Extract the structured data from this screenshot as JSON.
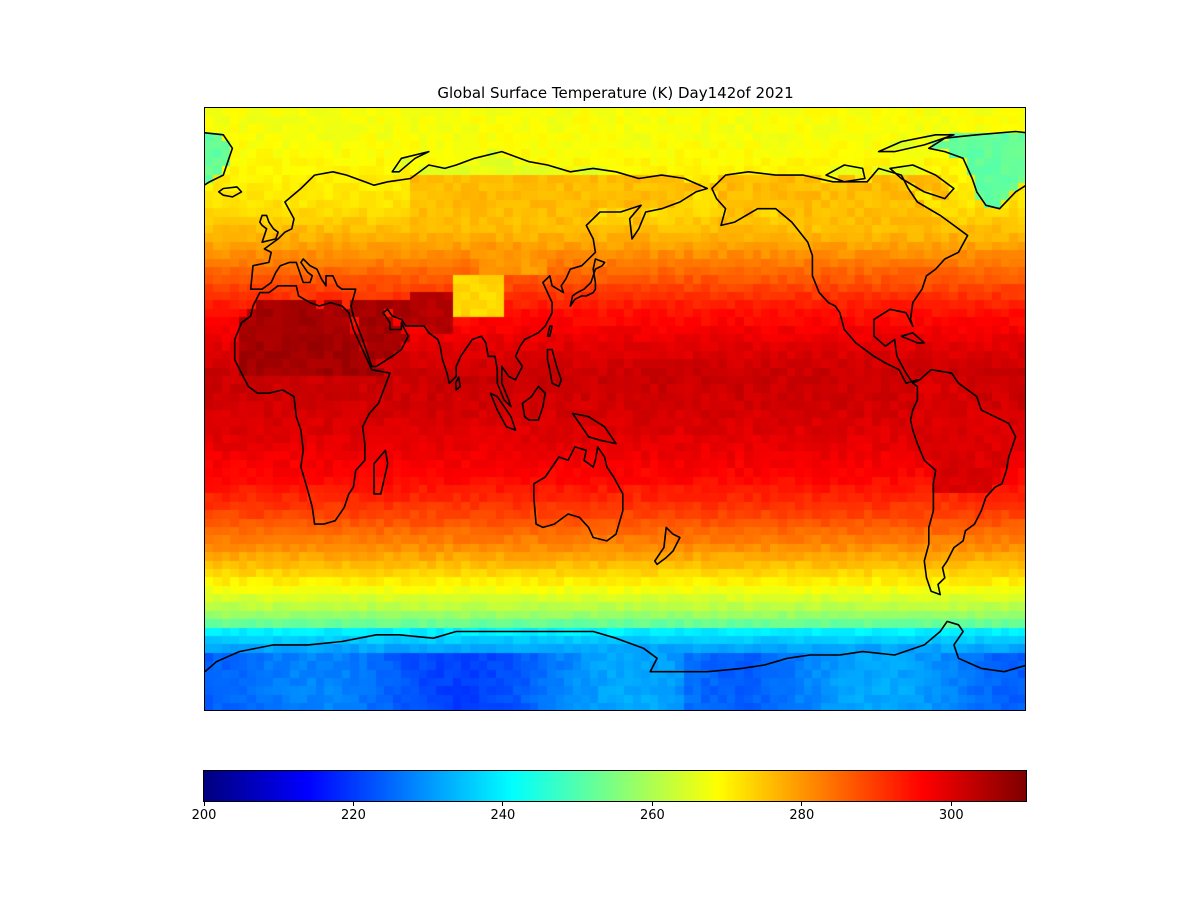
{
  "chart_data": {
    "type": "heatmap",
    "title": "Global Surface Temperature (K) Day142of 2021",
    "colormap": "jet",
    "colorbar": {
      "vmin": 200,
      "vmax": 310,
      "ticks": [
        200,
        220,
        240,
        260,
        280,
        300
      ],
      "tick_labels": [
        "200",
        "220",
        "240",
        "260",
        "280",
        "300"
      ],
      "orientation": "horizontal",
      "placement": "bottom"
    },
    "map": {
      "projection": "equirectangular",
      "central_longitude": 150,
      "lon_range": [
        -30,
        330
      ],
      "lat_range": [
        -90,
        90
      ],
      "coastlines": true,
      "country_borders": true,
      "state_borders": true
    },
    "temperature_profile": {
      "latitudes": [
        -90,
        -80,
        -75,
        -70,
        -65,
        -60,
        -50,
        -40,
        -30,
        -20,
        -10,
        0,
        10,
        20,
        30,
        40,
        50,
        60,
        70,
        80,
        90
      ],
      "ocean_values": [
        226,
        230,
        234,
        240,
        250,
        260,
        272,
        282,
        290,
        296,
        299,
        301,
        302,
        299,
        294,
        286,
        278,
        272,
        270,
        268,
        268
      ]
    }
  }
}
